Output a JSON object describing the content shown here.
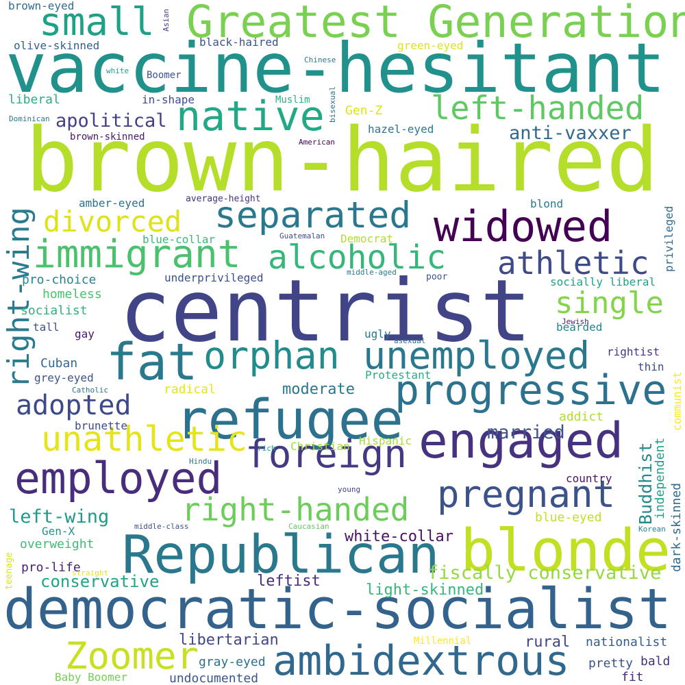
{
  "words": [
    {
      "text": "brown-haired",
      "color": "#b5de2b"
    },
    {
      "text": "centrist",
      "color": "#414487"
    },
    {
      "text": "vaccine-hesitant",
      "color": "#21918c"
    },
    {
      "text": "democratic-socialist",
      "color": "#33638d"
    },
    {
      "text": "Greatest Generation",
      "color": "#7ad151"
    },
    {
      "text": "Republican",
      "color": "#2a788e"
    },
    {
      "text": "blonde",
      "color": "#c2df23"
    },
    {
      "text": "refugee",
      "color": "#2c728e"
    },
    {
      "text": "fat",
      "color": "#2a788e"
    },
    {
      "text": "progressive",
      "color": "#2c728e"
    },
    {
      "text": "widowed",
      "color": "#440154"
    },
    {
      "text": "ambidextrous",
      "color": "#31688e"
    },
    {
      "text": "engaged",
      "color": "#46327e"
    },
    {
      "text": "orphan",
      "color": "#228c8d"
    },
    {
      "text": "unemployed",
      "color": "#2a788e"
    },
    {
      "text": "immigrant",
      "color": "#4ac16d"
    },
    {
      "text": "employed",
      "color": "#472d7b"
    },
    {
      "text": "native",
      "color": "#22a884"
    },
    {
      "text": "small",
      "color": "#1fa187"
    },
    {
      "text": "separated",
      "color": "#2a788e"
    },
    {
      "text": "pregnant",
      "color": "#3b528b"
    },
    {
      "text": "Zoomer",
      "color": "#c8e020"
    },
    {
      "text": "foreign",
      "color": "#443983"
    },
    {
      "text": "athletic",
      "color": "#3e4a89"
    },
    {
      "text": "right-handed",
      "color": "#6ccd5a"
    },
    {
      "text": "unathletic",
      "color": "#e5e419"
    },
    {
      "text": "alcoholic",
      "color": "#35b779"
    },
    {
      "text": "left-handed",
      "color": "#5ec962"
    },
    {
      "text": "right-wing",
      "color": "#287c8e"
    },
    {
      "text": "divorced",
      "color": "#dde318"
    },
    {
      "text": "single",
      "color": "#84d44b"
    },
    {
      "text": "adopted",
      "color": "#3e4989"
    },
    {
      "text": "fiscally conservative",
      "color": "#95d840"
    },
    {
      "text": "apolitical",
      "color": "#424086"
    },
    {
      "text": "anti-vaxxer",
      "color": "#31688e"
    },
    {
      "text": "left-wing",
      "color": "#1f9a8a"
    },
    {
      "text": "conservative",
      "color": "#20a386"
    },
    {
      "text": "married",
      "color": "#3b528b"
    },
    {
      "text": "moderate",
      "color": "#2a768e"
    },
    {
      "text": "Buddhist",
      "color": "#228c8d"
    },
    {
      "text": "independent",
      "color": "#1f9e89"
    },
    {
      "text": "libertarian",
      "color": "#3f4788"
    },
    {
      "text": "rural",
      "color": "#404688"
    },
    {
      "text": "leftist",
      "color": "#472c7a"
    },
    {
      "text": "light-skinned",
      "color": "#35b779"
    },
    {
      "text": "white-collar",
      "color": "#471164"
    },
    {
      "text": "blue-eyed",
      "color": "#c0df25"
    },
    {
      "text": "nationalist",
      "color": "#365c8d"
    },
    {
      "text": "pretty",
      "color": "#3b528b"
    },
    {
      "text": "bald",
      "color": "#46307e"
    },
    {
      "text": "fit",
      "color": "#482878"
    },
    {
      "text": "undocumented",
      "color": "#39568c"
    },
    {
      "text": "gray-eyed",
      "color": "#2d708e"
    },
    {
      "text": "Baby Boomer",
      "color": "#75d054"
    },
    {
      "text": "Millennial",
      "color": "#fde725"
    },
    {
      "text": "Gen-X",
      "color": "#21918c"
    },
    {
      "text": "overweight",
      "color": "#3dbc74"
    },
    {
      "text": "pro-life",
      "color": "#482173"
    },
    {
      "text": "teenage",
      "color": "#d8e219"
    },
    {
      "text": "straight",
      "color": "#e2e418"
    },
    {
      "text": "middle-class",
      "color": "#3d4e8a"
    },
    {
      "text": "Caucasian",
      "color": "#5ec962"
    },
    {
      "text": "dark-skinned",
      "color": "#30698e"
    },
    {
      "text": "Korean",
      "color": "#26828e"
    },
    {
      "text": "young",
      "color": "#414487"
    },
    {
      "text": "country",
      "color": "#481467"
    },
    {
      "text": "Hindu",
      "color": "#2d718e"
    },
    {
      "text": "rich",
      "color": "#1fa088"
    },
    {
      "text": "Christian",
      "color": "#a2da37"
    },
    {
      "text": "Hispanic",
      "color": "#a8db34"
    },
    {
      "text": "communist",
      "color": "#fde725"
    },
    {
      "text": "addict",
      "color": "#b0dd2f"
    },
    {
      "text": "radical",
      "color": "#e7e419"
    },
    {
      "text": "Protestant",
      "color": "#27ad81"
    },
    {
      "text": "brunette",
      "color": "#3e4989"
    },
    {
      "text": "Catholic",
      "color": "#2e6f8e"
    },
    {
      "text": "grey-eyed",
      "color": "#3b528b"
    },
    {
      "text": "Cuban",
      "color": "#31688e"
    },
    {
      "text": "thin",
      "color": "#3e4a89"
    },
    {
      "text": "rightist",
      "color": "#453781"
    },
    {
      "text": "ugly",
      "color": "#2c728e"
    },
    {
      "text": "asexual",
      "color": "#2f6c8e"
    },
    {
      "text": "bearded",
      "color": "#26828e"
    },
    {
      "text": "Jewish",
      "color": "#482071"
    },
    {
      "text": "tall",
      "color": "#3b528b"
    },
    {
      "text": "gay",
      "color": "#481668"
    },
    {
      "text": "socialist",
      "color": "#2db27d"
    },
    {
      "text": "homeless",
      "color": "#4ac16d"
    },
    {
      "text": "pro-choice",
      "color": "#25858e"
    },
    {
      "text": "underprivileged",
      "color": "#3b518b"
    },
    {
      "text": "socially liberal",
      "color": "#1fa187"
    },
    {
      "text": "poor",
      "color": "#3b528b"
    },
    {
      "text": "middle-aged",
      "color": "#2a788e"
    },
    {
      "text": "Democrat",
      "color": "#b0dd2f"
    },
    {
      "text": "Guatemalan",
      "color": "#3e4989"
    },
    {
      "text": "blue-collar",
      "color": "#3aba76"
    },
    {
      "text": "privileged",
      "color": "#2f6b8e"
    },
    {
      "text": "blond",
      "color": "#2a778e"
    },
    {
      "text": "average-height",
      "color": "#46327e"
    },
    {
      "text": "amber-eyed",
      "color": "#2d708e"
    },
    {
      "text": "American",
      "color": "#440154"
    },
    {
      "text": "hazel-eyed",
      "color": "#2a788e"
    },
    {
      "text": "brown-skinned",
      "color": "#481668"
    },
    {
      "text": "Dominican",
      "color": "#297a8e"
    },
    {
      "text": "bisexual",
      "color": "#2d718e"
    },
    {
      "text": "Gen-Z",
      "color": "#dde318"
    },
    {
      "text": "Muslim",
      "color": "#2ab07f"
    },
    {
      "text": "in-shape",
      "color": "#3d4d8a"
    },
    {
      "text": "liberal",
      "color": "#29af7f"
    },
    {
      "text": "Chinese",
      "color": "#2a788e"
    },
    {
      "text": "white",
      "color": "#1f9e89"
    },
    {
      "text": "Boomer",
      "color": "#3b528b"
    },
    {
      "text": "olive-skinned",
      "color": "#355f8d"
    },
    {
      "text": "black-haired",
      "color": "#3b528b"
    },
    {
      "text": "green-eyed",
      "color": "#dde318"
    },
    {
      "text": "brown-eyed",
      "color": "#2f6c8e"
    },
    {
      "text": "Asian",
      "color": "#424086"
    }
  ]
}
